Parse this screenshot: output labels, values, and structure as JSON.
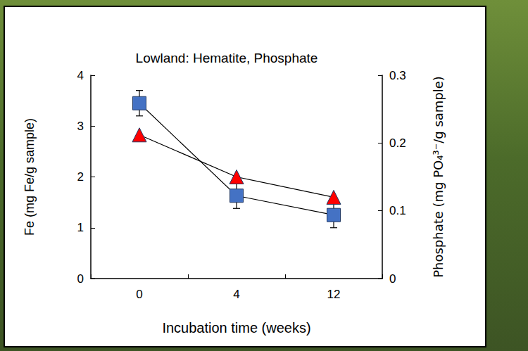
{
  "chart_data": {
    "type": "line",
    "title": "Lowland: Hematite, Phosphate",
    "x_label": "Incubation time (weeks)",
    "y_label": "Fe (mg Fe/g sample)",
    "y2_label": "Phosphate (mg PO₄³⁻/g sample)",
    "categories": [
      "0",
      "4",
      "12"
    ],
    "ylim": [
      0,
      4
    ],
    "yticks": [
      0,
      1,
      2,
      3,
      4
    ],
    "y2lim": [
      0,
      0.3
    ],
    "y2ticks": [
      0,
      0.1,
      0.2,
      0.3
    ],
    "grid": false,
    "series": [
      {
        "color": "#4472c4",
        "marker": "square",
        "values": [
          3.45,
          1.63,
          1.25
        ],
        "errors": [
          0.25,
          0.25,
          0.25
        ]
      },
      {
        "color": "#ff0000",
        "marker": "triangle",
        "axis": "y2",
        "values": [
          0.212,
          0.15,
          0.12
        ]
      }
    ]
  }
}
